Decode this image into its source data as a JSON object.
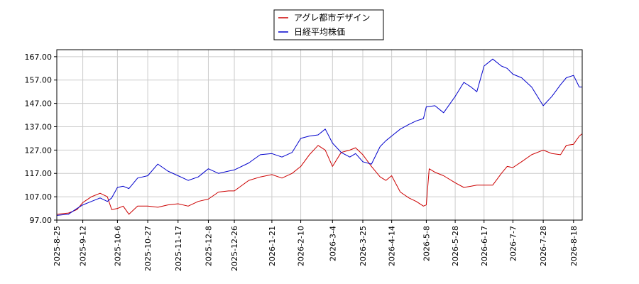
{
  "chart_data": {
    "type": "line",
    "title": "",
    "xlabel": "",
    "ylabel": "",
    "ylim": [
      97.0,
      170.0
    ],
    "y_ticks": [
      "97.00",
      "107.00",
      "117.00",
      "127.00",
      "137.00",
      "147.00",
      "157.00",
      "167.00"
    ],
    "x_ticks": [
      "2025-8-25",
      "2025-9-12",
      "2025-10-6",
      "2025-10-27",
      "2025-11-17",
      "2025-12-8",
      "2025-12-26",
      "2026-1-21",
      "2026-2-10",
      "2026-3-4",
      "2026-3-25",
      "2026-4-14",
      "2026-5-8",
      "2026-5-28",
      "2026-6-17",
      "2026-7-7",
      "2026-7-28",
      "2026-8-18"
    ],
    "grid": true,
    "legend_position": "top-center",
    "x_axis_type": "date",
    "series": [
      {
        "name": "アグレ都市デザイン",
        "color": "#cc0000",
        "points": [
          [
            "2025-08-25",
            99.5
          ],
          [
            "2025-09-02",
            100.0
          ],
          [
            "2025-09-08",
            101.5
          ],
          [
            "2025-09-12",
            104.5
          ],
          [
            "2025-09-18",
            107.0
          ],
          [
            "2025-09-24",
            108.5
          ],
          [
            "2025-09-29",
            107.0
          ],
          [
            "2025-10-02",
            101.5
          ],
          [
            "2025-10-06",
            102.0
          ],
          [
            "2025-10-10",
            103.0
          ],
          [
            "2025-10-14",
            99.5
          ],
          [
            "2025-10-20",
            103.0
          ],
          [
            "2025-10-27",
            103.0
          ],
          [
            "2025-11-03",
            102.5
          ],
          [
            "2025-11-10",
            103.5
          ],
          [
            "2025-11-17",
            104.0
          ],
          [
            "2025-11-24",
            103.0
          ],
          [
            "2025-12-01",
            105.0
          ],
          [
            "2025-12-08",
            106.0
          ],
          [
            "2025-12-15",
            109.0
          ],
          [
            "2025-12-22",
            109.5
          ],
          [
            "2025-12-26",
            109.5
          ],
          [
            "2026-01-05",
            114.0
          ],
          [
            "2026-01-13",
            115.5
          ],
          [
            "2026-01-21",
            116.5
          ],
          [
            "2026-01-28",
            115.0
          ],
          [
            "2026-02-04",
            117.0
          ],
          [
            "2026-02-10",
            120.0
          ],
          [
            "2026-02-16",
            125.0
          ],
          [
            "2026-02-22",
            129.0
          ],
          [
            "2026-02-27",
            127.0
          ],
          [
            "2026-03-04",
            120.0
          ],
          [
            "2026-03-10",
            126.0
          ],
          [
            "2026-03-16",
            127.0
          ],
          [
            "2026-03-20",
            128.0
          ],
          [
            "2026-03-25",
            125.0
          ],
          [
            "2026-03-31",
            120.0
          ],
          [
            "2026-04-06",
            115.5
          ],
          [
            "2026-04-10",
            114.0
          ],
          [
            "2026-04-14",
            116.0
          ],
          [
            "2026-04-20",
            109.0
          ],
          [
            "2026-04-26",
            106.5
          ],
          [
            "2026-05-01",
            105.0
          ],
          [
            "2026-05-06",
            103.0
          ],
          [
            "2026-05-08",
            103.5
          ],
          [
            "2026-05-10",
            119.0
          ],
          [
            "2026-05-14",
            117.5
          ],
          [
            "2026-05-20",
            116.0
          ],
          [
            "2026-05-28",
            113.0
          ],
          [
            "2026-06-03",
            111.0
          ],
          [
            "2026-06-08",
            111.5
          ],
          [
            "2026-06-12",
            112.0
          ],
          [
            "2026-06-17",
            112.0
          ],
          [
            "2026-06-23",
            112.0
          ],
          [
            "2026-06-29",
            117.0
          ],
          [
            "2026-07-03",
            120.0
          ],
          [
            "2026-07-07",
            119.5
          ],
          [
            "2026-07-13",
            122.0
          ],
          [
            "2026-07-20",
            125.0
          ],
          [
            "2026-07-28",
            127.0
          ],
          [
            "2026-08-03",
            125.5
          ],
          [
            "2026-08-09",
            125.0
          ],
          [
            "2026-08-13",
            129.0
          ],
          [
            "2026-08-18",
            129.5
          ],
          [
            "2026-08-22",
            133.0
          ],
          [
            "2026-08-24",
            134.0
          ]
        ]
      },
      {
        "name": "日経平均株価",
        "color": "#0000cc",
        "points": [
          [
            "2025-08-25",
            99.0
          ],
          [
            "2025-09-02",
            99.5
          ],
          [
            "2025-09-08",
            102.0
          ],
          [
            "2025-09-12",
            103.5
          ],
          [
            "2025-09-18",
            105.0
          ],
          [
            "2025-09-24",
            106.5
          ],
          [
            "2025-09-29",
            105.0
          ],
          [
            "2025-10-02",
            106.5
          ],
          [
            "2025-10-06",
            111.0
          ],
          [
            "2025-10-10",
            111.5
          ],
          [
            "2025-10-14",
            110.5
          ],
          [
            "2025-10-20",
            115.0
          ],
          [
            "2025-10-27",
            116.0
          ],
          [
            "2025-11-03",
            121.0
          ],
          [
            "2025-11-10",
            118.0
          ],
          [
            "2025-11-17",
            116.0
          ],
          [
            "2025-11-24",
            114.0
          ],
          [
            "2025-12-01",
            115.5
          ],
          [
            "2025-12-08",
            119.0
          ],
          [
            "2025-12-15",
            117.0
          ],
          [
            "2025-12-22",
            118.0
          ],
          [
            "2025-12-26",
            118.5
          ],
          [
            "2026-01-05",
            121.5
          ],
          [
            "2026-01-13",
            125.0
          ],
          [
            "2026-01-21",
            125.5
          ],
          [
            "2026-01-28",
            124.0
          ],
          [
            "2026-02-04",
            126.0
          ],
          [
            "2026-02-10",
            132.0
          ],
          [
            "2026-02-16",
            133.0
          ],
          [
            "2026-02-22",
            133.5
          ],
          [
            "2026-02-27",
            136.0
          ],
          [
            "2026-03-04",
            130.0
          ],
          [
            "2026-03-10",
            126.0
          ],
          [
            "2026-03-16",
            124.0
          ],
          [
            "2026-03-20",
            125.5
          ],
          [
            "2026-03-25",
            122.0
          ],
          [
            "2026-03-31",
            121.0
          ],
          [
            "2026-04-06",
            128.5
          ],
          [
            "2026-04-10",
            131.0
          ],
          [
            "2026-04-14",
            133.0
          ],
          [
            "2026-04-20",
            136.0
          ],
          [
            "2026-04-26",
            138.0
          ],
          [
            "2026-05-01",
            139.5
          ],
          [
            "2026-05-06",
            140.5
          ],
          [
            "2026-05-08",
            145.5
          ],
          [
            "2026-05-14",
            146.0
          ],
          [
            "2026-05-20",
            143.0
          ],
          [
            "2026-05-28",
            150.0
          ],
          [
            "2026-06-03",
            156.0
          ],
          [
            "2026-06-08",
            154.0
          ],
          [
            "2026-06-12",
            152.0
          ],
          [
            "2026-06-17",
            163.0
          ],
          [
            "2026-06-23",
            166.0
          ],
          [
            "2026-06-29",
            163.0
          ],
          [
            "2026-07-03",
            162.0
          ],
          [
            "2026-07-07",
            159.5
          ],
          [
            "2026-07-13",
            158.0
          ],
          [
            "2026-07-20",
            154.0
          ],
          [
            "2026-07-28",
            146.0
          ],
          [
            "2026-08-03",
            150.0
          ],
          [
            "2026-08-09",
            155.0
          ],
          [
            "2026-08-13",
            158.0
          ],
          [
            "2026-08-18",
            159.0
          ],
          [
            "2026-08-22",
            154.0
          ],
          [
            "2026-08-24",
            154.0
          ]
        ]
      }
    ]
  }
}
